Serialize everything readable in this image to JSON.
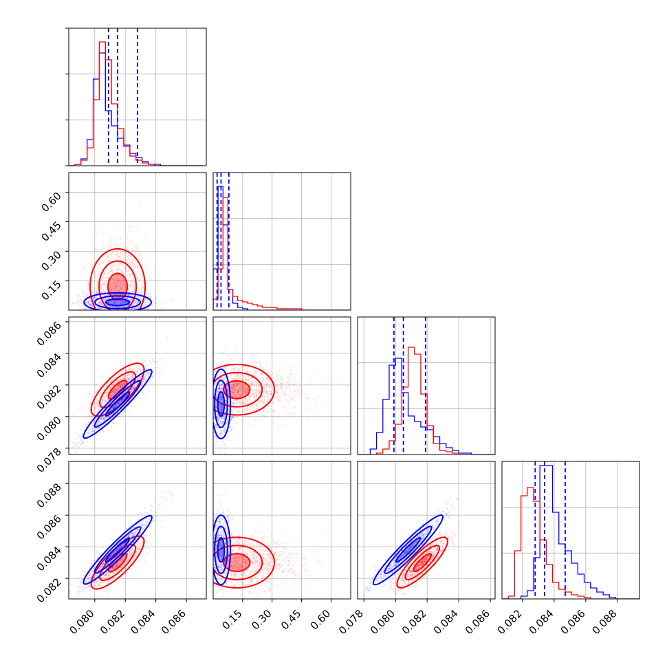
{
  "chart_data": {
    "type": "corner",
    "n_params": 4,
    "grid": true,
    "series": [
      {
        "color": "#0000ff"
      },
      {
        "color": "#ff0000"
      }
    ],
    "param_ranges": [
      [
        0.0783,
        0.0873
      ],
      [
        0.0,
        0.7
      ],
      [
        0.0776,
        0.0863
      ],
      [
        0.0807,
        0.0894
      ]
    ],
    "axis_ticks": [
      {
        "values": [
          0.08,
          0.082,
          0.084,
          0.086
        ],
        "labels": [
          "0.080",
          "0.082",
          "0.084",
          "0.086"
        ]
      },
      {
        "values": [
          0.15,
          0.3,
          0.45,
          0.6
        ],
        "labels": [
          "0.15",
          "0.30",
          "0.45",
          "0.60"
        ]
      },
      {
        "values": [
          0.078,
          0.08,
          0.082,
          0.084,
          0.086
        ],
        "labels": [
          "0.078",
          "0.080",
          "0.082",
          "0.084",
          "0.086"
        ]
      },
      {
        "values": [
          0.082,
          0.084,
          0.086,
          0.088
        ],
        "labels": [
          "0.082",
          "0.084",
          "0.086",
          "0.088"
        ]
      }
    ],
    "quantile_lines": [
      [
        0.0809,
        0.0815,
        0.0828
      ],
      [
        0.02,
        0.04,
        0.08
      ],
      [
        0.0799,
        0.0805,
        0.0819
      ],
      [
        0.0828,
        0.0834,
        0.0847
      ]
    ],
    "histograms": {
      "blue": [
        {
          "start": 0.0783,
          "step": 0.0004,
          "counts": [
            0.0,
            0.01,
            0.05,
            0.19,
            0.63,
            0.82,
            0.4,
            0.29,
            0.2,
            0.15,
            0.09,
            0.06,
            0.03,
            0.01,
            0.01,
            0.0,
            0.0,
            0.0,
            0.0,
            0.0,
            0.0,
            0.0
          ]
        },
        {
          "start": 0.0,
          "step": 0.025,
          "counts": [
            0.3,
            0.9,
            0.62,
            0.15,
            0.05,
            0.02,
            0.01,
            0.0,
            0.0,
            0.0,
            0.0,
            0.0,
            0.0,
            0.0,
            0.0,
            0.0,
            0.0,
            0.0,
            0.0,
            0.0,
            0.0,
            0.0,
            0.0,
            0.0,
            0.0,
            0.0,
            0.0,
            0.0
          ]
        },
        {
          "start": 0.0776,
          "step": 0.0004,
          "counts": [
            0.0,
            0.0,
            0.04,
            0.16,
            0.4,
            0.65,
            0.7,
            0.45,
            0.28,
            0.24,
            0.2,
            0.18,
            0.13,
            0.08,
            0.05,
            0.03,
            0.01,
            0.01,
            0.0,
            0.0,
            0.0,
            0.0
          ]
        },
        {
          "start": 0.0807,
          "step": 0.0004,
          "counts": [
            0.0,
            0.0,
            0.0,
            0.02,
            0.06,
            0.3,
            0.97,
            0.97,
            0.63,
            0.4,
            0.35,
            0.26,
            0.18,
            0.12,
            0.08,
            0.05,
            0.03,
            0.01,
            0.0,
            0.0,
            0.0,
            0.0
          ]
        }
      ],
      "red": [
        {
          "start": 0.0783,
          "step": 0.0004,
          "counts": [
            0.0,
            0.01,
            0.04,
            0.13,
            0.48,
            0.9,
            0.77,
            0.45,
            0.27,
            0.14,
            0.07,
            0.04,
            0.02,
            0.01,
            0.0,
            0.0,
            0.0,
            0.0,
            0.0,
            0.0,
            0.0,
            0.0
          ]
        },
        {
          "start": 0.0,
          "step": 0.025,
          "counts": [
            0.08,
            0.3,
            0.82,
            0.15,
            0.1,
            0.07,
            0.06,
            0.05,
            0.04,
            0.03,
            0.02,
            0.02,
            0.02,
            0.01,
            0.01,
            0.01,
            0.01,
            0.01,
            0.0,
            0.0,
            0.0,
            0.0,
            0.0,
            0.0,
            0.0,
            0.0,
            0.0,
            0.0
          ]
        },
        {
          "start": 0.0776,
          "step": 0.0004,
          "counts": [
            0.0,
            0.0,
            0.0,
            0.01,
            0.04,
            0.1,
            0.22,
            0.49,
            0.78,
            0.73,
            0.44,
            0.21,
            0.08,
            0.03,
            0.02,
            0.01,
            0.0,
            0.0,
            0.0,
            0.0,
            0.0,
            0.0
          ]
        },
        {
          "start": 0.0807,
          "step": 0.0004,
          "counts": [
            0.0,
            0.02,
            0.35,
            0.75,
            0.81,
            0.71,
            0.43,
            0.25,
            0.12,
            0.07,
            0.05,
            0.03,
            0.02,
            0.01,
            0.0,
            0.0,
            0.0,
            0.0,
            0.0,
            0.0,
            0.0,
            0.0
          ]
        }
      ]
    },
    "scatter": {
      "blue": {
        "mean": [
          0.0815,
          0.04,
          0.0808,
          0.0838
        ],
        "std": [
          0.0011,
          0.03,
          0.0011,
          0.0011
        ],
        "corr": [
          [
            1,
            0,
            0.95,
            0.95
          ],
          [
            0,
            1,
            0,
            0
          ],
          [
            0.95,
            0,
            1,
            0.95
          ],
          [
            0.95,
            0,
            0.95,
            1
          ]
        ]
      },
      "red": {
        "mean": [
          0.0815,
          0.12,
          0.0817,
          0.083
        ],
        "std": [
          0.0009,
          0.12,
          0.0008,
          0.0008
        ],
        "corr": [
          [
            1,
            0.1,
            0.75,
            0.8
          ],
          [
            0.1,
            1,
            0.1,
            0.1
          ],
          [
            0.75,
            0.1,
            1,
            0.85
          ],
          [
            0.8,
            0.1,
            0.85,
            1
          ]
        ]
      }
    }
  }
}
